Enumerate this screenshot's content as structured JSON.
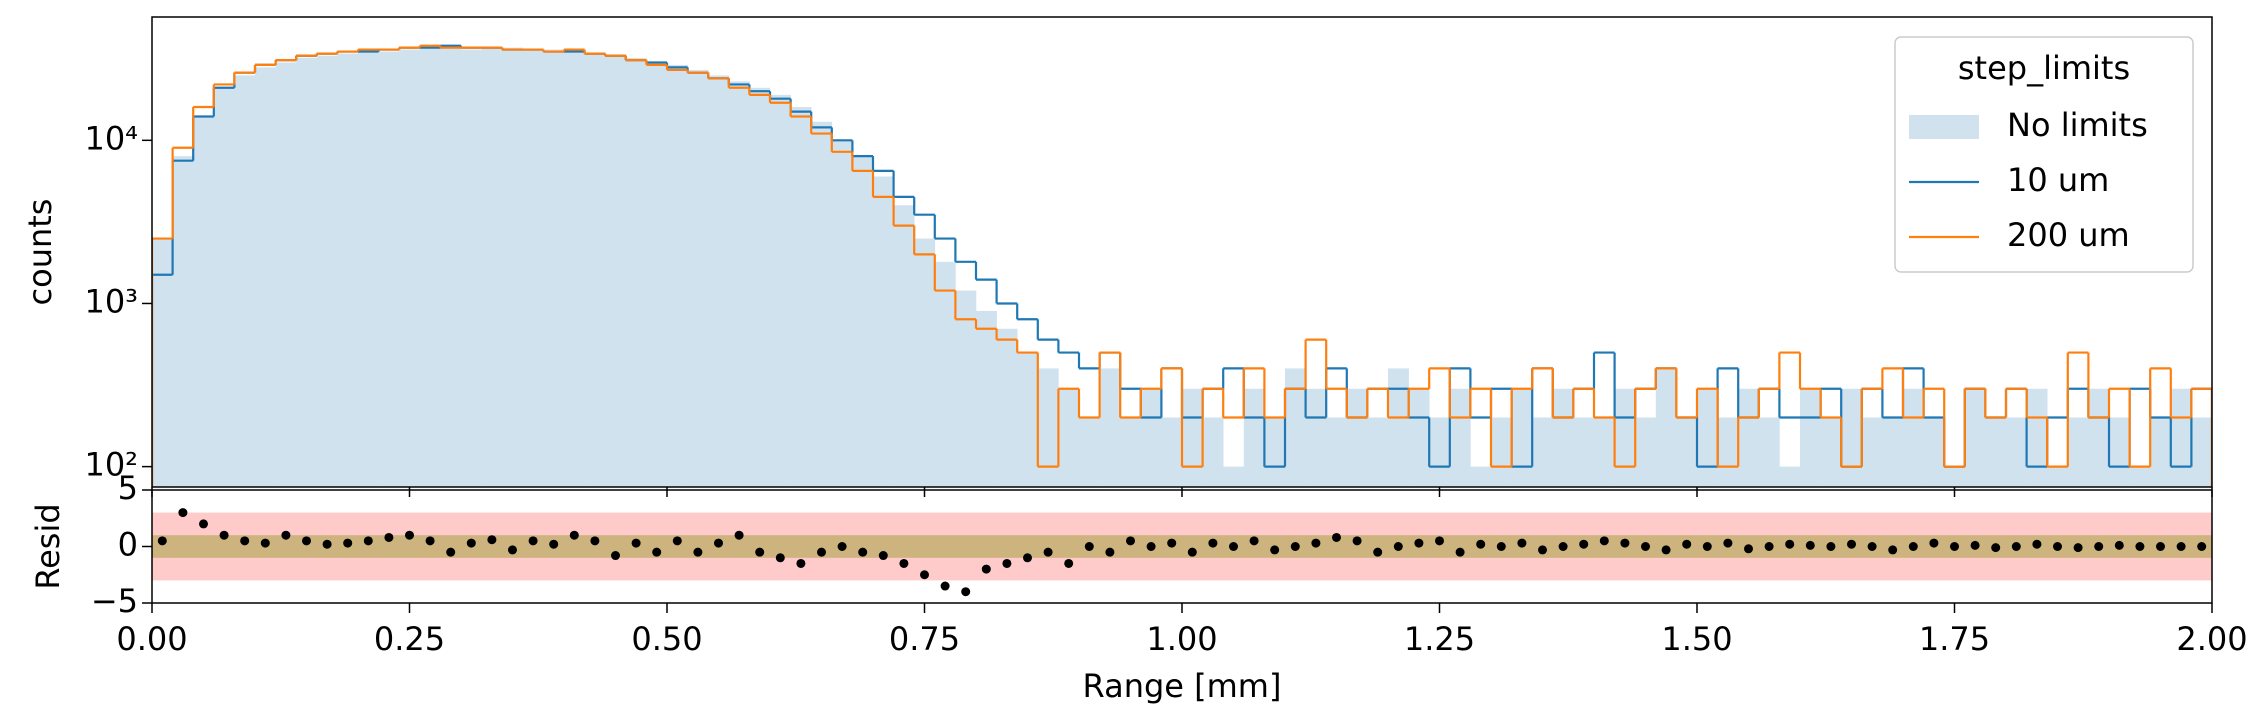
{
  "chart_data": [
    {
      "type": "histogram",
      "ylabel": "counts",
      "log_y": true,
      "ylim": [
        75,
        57000
      ],
      "yticks": [
        {
          "value": 100,
          "label": "10²"
        },
        {
          "value": 1000,
          "label": "10³"
        },
        {
          "value": 10000,
          "label": "10⁴"
        }
      ],
      "xlim": [
        0,
        2
      ],
      "legend_title": "step_limits",
      "legend": "upper right",
      "bins": [
        0,
        0.02,
        0.04,
        0.06,
        0.08,
        0.1,
        0.12,
        0.14,
        0.16,
        0.18,
        0.2,
        0.22,
        0.24,
        0.26,
        0.28,
        0.3,
        0.32,
        0.34,
        0.36,
        0.38,
        0.4,
        0.42,
        0.44,
        0.46,
        0.48,
        0.5,
        0.52,
        0.54,
        0.56,
        0.58,
        0.6,
        0.62,
        0.64,
        0.66,
        0.68,
        0.7,
        0.72,
        0.74,
        0.76,
        0.78,
        0.8,
        0.82,
        0.84,
        0.86,
        0.88,
        0.9,
        0.92,
        0.94,
        0.96,
        0.98,
        1,
        1.02,
        1.04,
        1.06,
        1.08,
        1.1,
        1.12,
        1.14,
        1.16,
        1.18,
        1.2,
        1.22,
        1.24,
        1.26,
        1.28,
        1.3,
        1.32,
        1.34,
        1.36,
        1.38,
        1.4,
        1.42,
        1.44,
        1.46,
        1.48,
        1.5,
        1.52,
        1.54,
        1.56,
        1.58,
        1.6,
        1.62,
        1.64,
        1.66,
        1.68,
        1.7,
        1.72,
        1.74,
        1.76,
        1.78,
        1.8,
        1.82,
        1.84,
        1.86,
        1.88,
        1.9,
        1.92,
        1.94,
        1.96,
        1.98,
        2
      ],
      "series": [
        {
          "name": "No limits",
          "color": "#d1e2ef",
          "style": "fill",
          "values": [
            2500,
            8000,
            14000,
            21000,
            25000,
            28000,
            30000,
            32000,
            33000,
            34000,
            35000,
            35000,
            36000,
            37000,
            37000,
            36000,
            37000,
            37000,
            36000,
            36000,
            35000,
            34000,
            33000,
            32000,
            30000,
            29000,
            27000,
            25000,
            23000,
            21000,
            19000,
            16000,
            13000,
            10000,
            8000,
            6000,
            4000,
            2500,
            1800,
            1200,
            900,
            700,
            500,
            400,
            300,
            200,
            400,
            200,
            300,
            200,
            300,
            200,
            100,
            300,
            200,
            400,
            300,
            200,
            300,
            200,
            400,
            300,
            200,
            300,
            100,
            200,
            300,
            200,
            300,
            200,
            200,
            300,
            200,
            400,
            200,
            300,
            200,
            300,
            200,
            100,
            300,
            200,
            300,
            200,
            200,
            300,
            200,
            100,
            300,
            200,
            200,
            300,
            100,
            200,
            300,
            200,
            100,
            200,
            300,
            200
          ]
        },
        {
          "name": "10 um",
          "color": "#1f77b4",
          "style": "step",
          "values": [
            1500,
            7500,
            14000,
            21000,
            26000,
            29000,
            31000,
            33000,
            34000,
            35000,
            35000,
            36000,
            37000,
            37000,
            38000,
            37000,
            37000,
            36000,
            36000,
            35000,
            35000,
            34000,
            33000,
            31000,
            30000,
            28000,
            26000,
            24000,
            22000,
            20000,
            18000,
            15000,
            12000,
            10000,
            8000,
            6500,
            4500,
            3500,
            2500,
            1800,
            1400,
            1000,
            800,
            600,
            500,
            400,
            500,
            300,
            200,
            400,
            200,
            300,
            400,
            200,
            100,
            300,
            200,
            400,
            200,
            300,
            300,
            200,
            100,
            400,
            200,
            300,
            100,
            400,
            200,
            300,
            500,
            200,
            300,
            400,
            200,
            100,
            400,
            200,
            300,
            200,
            200,
            300,
            100,
            300,
            200,
            400,
            200,
            100,
            300,
            200,
            300,
            100,
            200,
            300,
            200,
            100,
            300,
            200,
            100,
            300
          ]
        },
        {
          "name": "200 um",
          "color": "#ff7f0e",
          "style": "step",
          "values": [
            2500,
            9000,
            16000,
            22000,
            26000,
            29000,
            31000,
            33000,
            34000,
            35000,
            36000,
            36000,
            37000,
            38000,
            37000,
            37000,
            37000,
            36000,
            36000,
            35000,
            36000,
            34000,
            33000,
            31000,
            29000,
            27000,
            26000,
            24000,
            21000,
            19000,
            17000,
            14000,
            11000,
            8500,
            6500,
            4500,
            3000,
            2000,
            1200,
            800,
            700,
            600,
            500,
            100,
            300,
            200,
            500,
            200,
            300,
            400,
            100,
            300,
            200,
            400,
            200,
            300,
            600,
            300,
            200,
            300,
            200,
            300,
            400,
            200,
            300,
            100,
            300,
            400,
            200,
            300,
            200,
            100,
            300,
            400,
            200,
            300,
            100,
            200,
            300,
            500,
            300,
            200,
            100,
            300,
            400,
            200,
            300,
            100,
            300,
            200,
            300,
            200,
            100,
            500,
            200,
            300,
            100,
            400,
            200,
            300
          ]
        }
      ]
    },
    {
      "type": "scatter",
      "ylabel": "Resid",
      "xlabel": "Range [mm]",
      "xlim": [
        0,
        2
      ],
      "xticks": [
        {
          "value": 0,
          "label": "0.00"
        },
        {
          "value": 0.25,
          "label": "0.25"
        },
        {
          "value": 0.5,
          "label": "0.50"
        },
        {
          "value": 0.75,
          "label": "0.75"
        },
        {
          "value": 1,
          "label": "1.00"
        },
        {
          "value": 1.25,
          "label": "1.25"
        },
        {
          "value": 1.5,
          "label": "1.50"
        },
        {
          "value": 1.75,
          "label": "1.75"
        },
        {
          "value": 2,
          "label": "2.00"
        }
      ],
      "ylim": [
        -5,
        5
      ],
      "yticks": [
        {
          "value": -5,
          "label": "−5"
        },
        0,
        5
      ],
      "bands": [
        {
          "value": 3,
          "color": "#ffcaca"
        },
        {
          "value": 1,
          "color": "#cdb47e"
        }
      ],
      "color": "#000000",
      "x": [
        0.01,
        0.03,
        0.05,
        0.07,
        0.09,
        0.11,
        0.13,
        0.15,
        0.17,
        0.19,
        0.21,
        0.23,
        0.25,
        0.27,
        0.29,
        0.31,
        0.33,
        0.35,
        0.37,
        0.39,
        0.41,
        0.43,
        0.45,
        0.47,
        0.49,
        0.51,
        0.53,
        0.55,
        0.57,
        0.59,
        0.61,
        0.63,
        0.65,
        0.67,
        0.69,
        0.71,
        0.73,
        0.75,
        0.77,
        0.79,
        0.81,
        0.83,
        0.85,
        0.87,
        0.89,
        0.91,
        0.93,
        0.95,
        0.97,
        0.99,
        1.01,
        1.03,
        1.05,
        1.07,
        1.09,
        1.11,
        1.13,
        1.15,
        1.17,
        1.19,
        1.21,
        1.23,
        1.25,
        1.27,
        1.29,
        1.31,
        1.33,
        1.35,
        1.37,
        1.39,
        1.41,
        1.43,
        1.45,
        1.47,
        1.49,
        1.51,
        1.53,
        1.55,
        1.57,
        1.59,
        1.61,
        1.63,
        1.65,
        1.67,
        1.69,
        1.71,
        1.73,
        1.75,
        1.77,
        1.79,
        1.81,
        1.83,
        1.85,
        1.87,
        1.89,
        1.91,
        1.93,
        1.95,
        1.97,
        1.99
      ],
      "values": [
        0.5,
        3,
        2,
        1,
        0.5,
        0.3,
        1,
        0.5,
        0.2,
        0.3,
        0.5,
        0.8,
        1,
        0.5,
        -0.5,
        0.3,
        0.6,
        -0.3,
        0.5,
        0.2,
        1,
        0.5,
        -0.8,
        0.3,
        -0.5,
        0.5,
        -0.5,
        0.3,
        1,
        -0.5,
        -1,
        -1.5,
        -0.5,
        0,
        -0.5,
        -0.8,
        -1.5,
        -2.5,
        -3.5,
        -4,
        -2,
        -1.5,
        -1,
        -0.5,
        -1.5,
        0,
        -0.5,
        0.5,
        0,
        0.3,
        -0.5,
        0.3,
        0,
        0.5,
        -0.3,
        0,
        0.3,
        0.8,
        0.5,
        -0.5,
        0,
        0.3,
        0.5,
        -0.5,
        0.2,
        0,
        0.3,
        -0.3,
        0,
        0.2,
        0.5,
        0.3,
        0,
        -0.3,
        0.2,
        0,
        0.3,
        -0.2,
        0,
        0.2,
        0.1,
        0,
        0.2,
        0,
        -0.3,
        0,
        0.3,
        0,
        0.1,
        -0.1,
        0,
        0.2,
        0,
        -0.1,
        0,
        0.1,
        0,
        0,
        0,
        0
      ]
    }
  ]
}
